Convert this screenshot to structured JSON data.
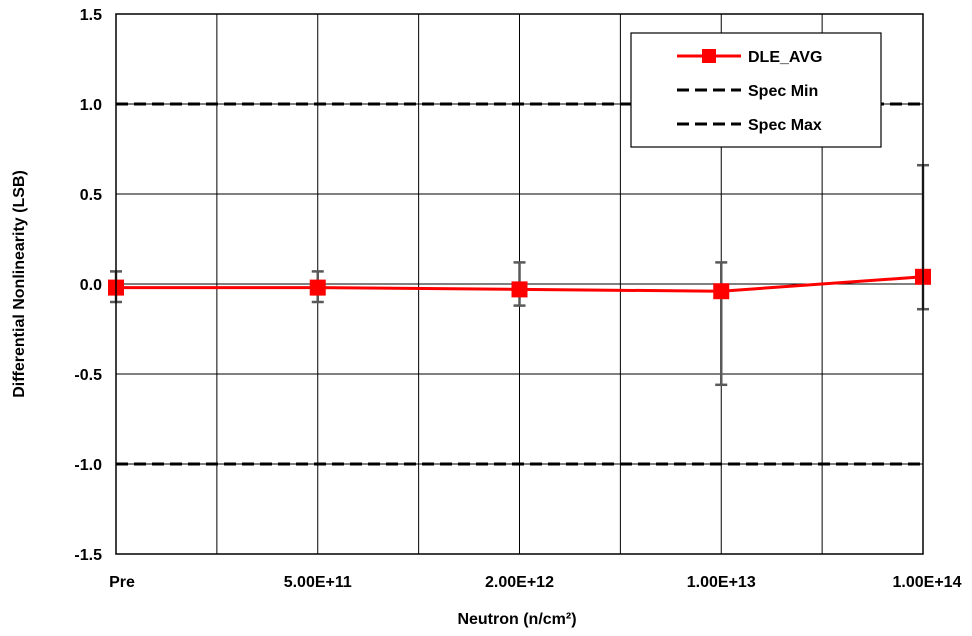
{
  "chart_data": {
    "type": "line",
    "xlabel": "Neutron (n/cm²)",
    "ylabel": "Differential Nonlinearity (LSB)",
    "categories": [
      "Pre",
      "5.00E+11",
      "2.00E+12",
      "1.00E+13",
      "1.00E+14"
    ],
    "ylim": [
      -1.5,
      1.5
    ],
    "yticks": [
      "-1.5",
      "-1.0",
      "-0.5",
      "0.0",
      "0.5",
      "1.0",
      "1.5"
    ],
    "grid": true,
    "legend_position": "top-right",
    "series": [
      {
        "name": "DLE_AVG",
        "color": "#ff0000",
        "marker": "square",
        "values": [
          -0.02,
          -0.02,
          -0.03,
          -0.04,
          0.04
        ],
        "error_high": [
          0.07,
          0.07,
          0.12,
          0.12,
          0.66
        ],
        "error_low": [
          -0.1,
          -0.1,
          -0.12,
          -0.56,
          -0.14
        ]
      },
      {
        "name": "Spec Min",
        "color": "#000000",
        "style": "dashed",
        "values": [
          1.0,
          1.0,
          1.0,
          1.0,
          1.0
        ]
      },
      {
        "name": "Spec Max",
        "color": "#000000",
        "style": "dashed",
        "values": [
          -1.0,
          -1.0,
          -1.0,
          -1.0,
          -1.0
        ]
      }
    ],
    "error_bar_color": "#595959"
  }
}
